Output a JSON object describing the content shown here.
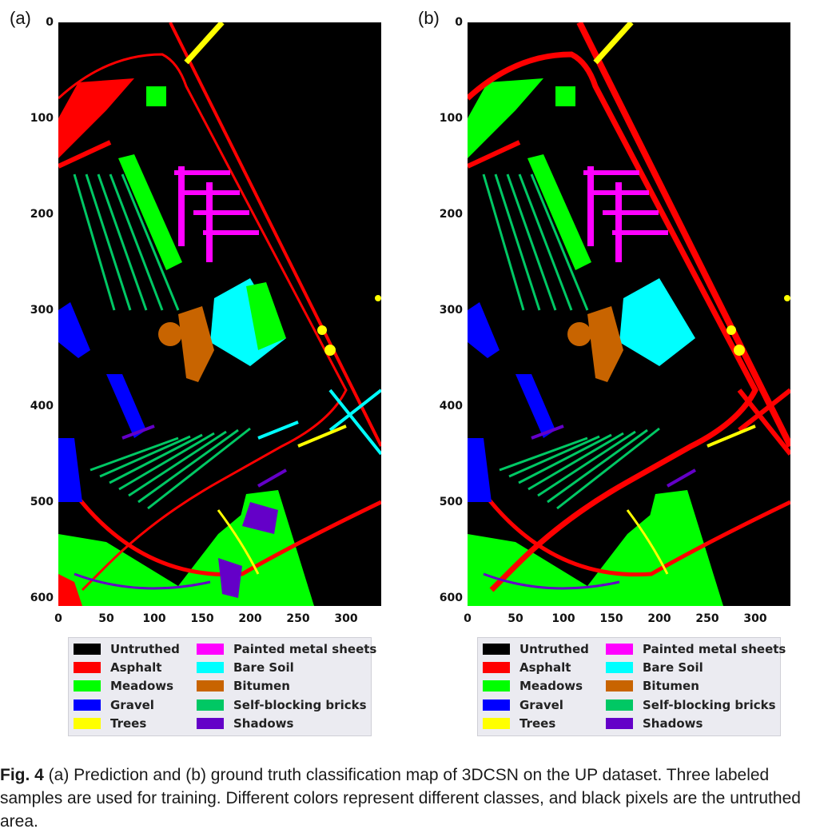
{
  "panels": [
    {
      "label": "(a)"
    },
    {
      "label": "(b)"
    }
  ],
  "axes": {
    "y_ticks": [
      "0",
      "100",
      "200",
      "300",
      "400",
      "500",
      "600"
    ],
    "x_ticks": [
      "0",
      "50",
      "100",
      "150",
      "200",
      "250",
      "300"
    ]
  },
  "legend": [
    {
      "label": "Untruthed",
      "color": "#000000"
    },
    {
      "label": "Asphalt",
      "color": "#ff0000"
    },
    {
      "label": "Meadows",
      "color": "#00ff00"
    },
    {
      "label": "Gravel",
      "color": "#0000ff"
    },
    {
      "label": "Trees",
      "color": "#ffff00"
    },
    {
      "label": "Painted metal sheets",
      "color": "#ff00ff"
    },
    {
      "label": "Bare Soil",
      "color": "#00ffff"
    },
    {
      "label": "Bitumen",
      "color": "#c86400"
    },
    {
      "label": "Self-blocking bricks",
      "color": "#00c864"
    },
    {
      "label": "Shadows",
      "color": "#6400c8"
    }
  ],
  "caption": {
    "fig_label": "Fig. 4",
    "text": " (a) Prediction and (b) ground truth classification map of 3DCSN on the UP dataset. Three labeled samples are used for training. Different colors represent different classes, and black pixels are the untruthed area."
  }
}
